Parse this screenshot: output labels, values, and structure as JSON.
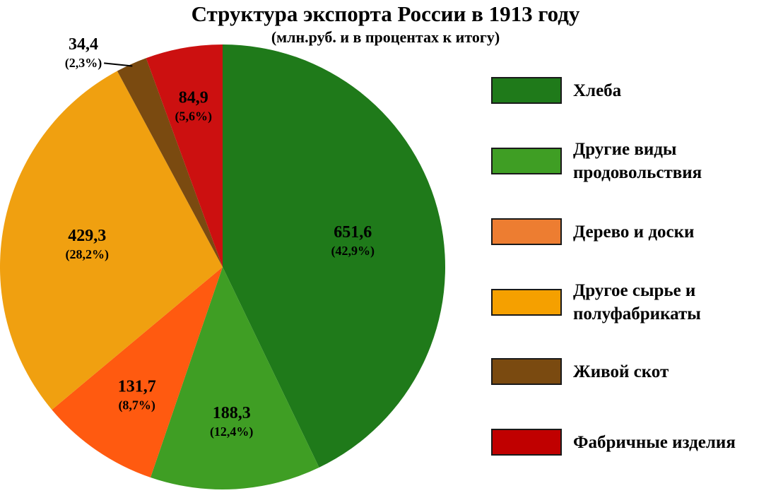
{
  "chart_data": {
    "type": "pie",
    "title": "Структура экспорта России в 1913 году",
    "subtitle": "(млн.руб. и в процентах к итогу)",
    "legend_position": "right",
    "slices": [
      {
        "label": "Хлеба",
        "value": 651.6,
        "value_label": "651,6",
        "percent_label": "(42,9%)",
        "color": "#1f7a1a"
      },
      {
        "label": "Другие виды продовольствия",
        "value": 188.3,
        "value_label": "188,3",
        "percent_label": "(12,4%)",
        "color": "#3f9e24"
      },
      {
        "label": "Дерево и доски",
        "value": 131.7,
        "value_label": "131,7",
        "percent_label": "(8,7%)",
        "color": "#ff5a10"
      },
      {
        "label": "Другое сырье и полуфабрикаты",
        "value": 429.3,
        "value_label": "429,3",
        "percent_label": "(28,2%)",
        "color": "#f0a010"
      },
      {
        "label": "Живой скот",
        "value": 34.4,
        "value_label": "34,4",
        "percent_label": "(2,3%)",
        "color": "#7a4a10"
      },
      {
        "label": "Фабричные изделия",
        "value": 84.9,
        "value_label": "84,9",
        "percent_label": "(5,6%)",
        "color": "#cc1010"
      }
    ]
  },
  "legend": [
    {
      "label": "Хлеба",
      "color": "#1f7a1a"
    },
    {
      "label": "Другие виды\nпродовольствия",
      "color": "#3f9e24"
    },
    {
      "label": "Дерево и доски",
      "color": "#ed7d31"
    },
    {
      "label": "Другое сырье и\nполуфабрикаты",
      "color": "#f5a000"
    },
    {
      "label": "Живой скот",
      "color": "#7a4a10"
    },
    {
      "label": "Фабричные изделия",
      "color": "#c00000"
    }
  ]
}
